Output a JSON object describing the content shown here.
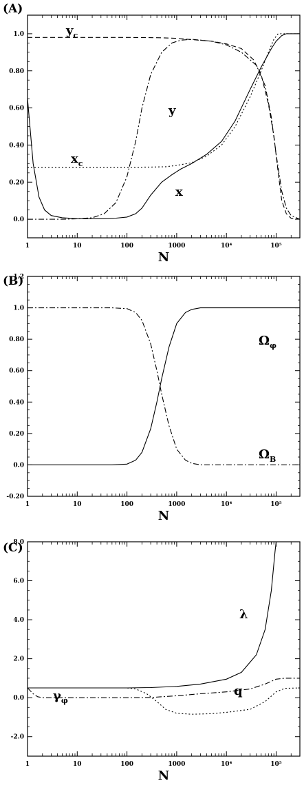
{
  "chart_data": [
    {
      "panel": "(A)",
      "type": "line",
      "xlabel": "N",
      "x_scale": "log",
      "xlim": [
        1,
        300000
      ],
      "ylim": [
        -0.1,
        1.1
      ],
      "x_ticks": [
        1,
        10,
        100,
        1000,
        10000,
        100000
      ],
      "x_tick_labels": [
        "1",
        "10",
        "100",
        "1000",
        "10⁴",
        "10⁵"
      ],
      "y_ticks": [
        0.0,
        0.2,
        0.4,
        0.6,
        0.8,
        1.0
      ],
      "y_tick_labels": [
        "0.0",
        "0.20",
        "0.40",
        "0.60",
        "0.80",
        "1.0"
      ],
      "series": [
        {
          "name": "x",
          "name_main": "x",
          "name_sub": "",
          "style": "solid",
          "points": [
            [
              1,
              0.65
            ],
            [
              1.3,
              0.3
            ],
            [
              1.7,
              0.12
            ],
            [
              2.2,
              0.05
            ],
            [
              3,
              0.02
            ],
            [
              5,
              0.008
            ],
            [
              10,
              0.003
            ],
            [
              30,
              0.003
            ],
            [
              60,
              0.006
            ],
            [
              100,
              0.012
            ],
            [
              150,
              0.03
            ],
            [
              200,
              0.06
            ],
            [
              300,
              0.13
            ],
            [
              500,
              0.2
            ],
            [
              800,
              0.24
            ],
            [
              1200,
              0.27
            ],
            [
              2000,
              0.3
            ],
            [
              4000,
              0.35
            ],
            [
              8000,
              0.42
            ],
            [
              15000,
              0.53
            ],
            [
              30000,
              0.7
            ],
            [
              50000,
              0.82
            ],
            [
              80000,
              0.92
            ],
            [
              100000,
              0.96
            ],
            [
              130000,
              0.99
            ],
            [
              160000,
              1.0
            ],
            [
              300000,
              1.0
            ]
          ]
        },
        {
          "name": "y",
          "name_main": "y",
          "name_sub": "",
          "style": "dashdot",
          "points": [
            [
              1,
              0.0
            ],
            [
              5,
              0.0
            ],
            [
              10,
              0.002
            ],
            [
              20,
              0.008
            ],
            [
              35,
              0.03
            ],
            [
              60,
              0.09
            ],
            [
              100,
              0.23
            ],
            [
              150,
              0.42
            ],
            [
              200,
              0.6
            ],
            [
              300,
              0.78
            ],
            [
              500,
              0.9
            ],
            [
              800,
              0.95
            ],
            [
              1200,
              0.965
            ],
            [
              2000,
              0.97
            ],
            [
              5000,
              0.96
            ],
            [
              10000,
              0.94
            ],
            [
              20000,
              0.9
            ],
            [
              40000,
              0.83
            ],
            [
              60000,
              0.72
            ],
            [
              80000,
              0.55
            ],
            [
              100000,
              0.35
            ],
            [
              130000,
              0.15
            ],
            [
              160000,
              0.06
            ],
            [
              200000,
              0.02
            ],
            [
              300000,
              0.0
            ]
          ]
        },
        {
          "name": "y_c",
          "name_main": "y",
          "name_sub": "c",
          "style": "dashed",
          "points": [
            [
              1,
              0.98
            ],
            [
              100,
              0.98
            ],
            [
              500,
              0.978
            ],
            [
              1000,
              0.975
            ],
            [
              2000,
              0.968
            ],
            [
              5000,
              0.96
            ],
            [
              10000,
              0.945
            ],
            [
              20000,
              0.92
            ],
            [
              35000,
              0.86
            ],
            [
              50000,
              0.78
            ],
            [
              70000,
              0.62
            ],
            [
              90000,
              0.45
            ],
            [
              110000,
              0.25
            ],
            [
              130000,
              0.1
            ],
            [
              160000,
              0.03
            ],
            [
              200000,
              0.005
            ],
            [
              300000,
              0.0
            ]
          ]
        },
        {
          "name": "x_c",
          "name_main": "x",
          "name_sub": "c",
          "style": "dotted",
          "points": [
            [
              1,
              0.28
            ],
            [
              100,
              0.28
            ],
            [
              300,
              0.281
            ],
            [
              600,
              0.283
            ],
            [
              1000,
              0.29
            ],
            [
              2000,
              0.305
            ],
            [
              4000,
              0.34
            ],
            [
              8000,
              0.4
            ],
            [
              15000,
              0.5
            ],
            [
              30000,
              0.66
            ],
            [
              50000,
              0.8
            ],
            [
              70000,
              0.9
            ],
            [
              90000,
              0.97
            ],
            [
              110000,
              1.0
            ],
            [
              300000,
              1.0
            ]
          ]
        }
      ]
    },
    {
      "panel": "(B)",
      "type": "line",
      "xlabel": "N",
      "x_scale": "log",
      "xlim": [
        1,
        300000
      ],
      "ylim": [
        -0.2,
        1.2
      ],
      "x_ticks": [
        1,
        10,
        100,
        1000,
        10000,
        100000
      ],
      "x_tick_labels": [
        "1",
        "10",
        "100",
        "1000",
        "10⁴",
        "10⁵"
      ],
      "y_ticks": [
        -0.2,
        0.0,
        0.2,
        0.4,
        0.6,
        0.8,
        1.0,
        1.2
      ],
      "y_tick_labels": [
        "-0.20",
        "0.0",
        "0.20",
        "0.40",
        "0.60",
        "0.80",
        "1.0",
        "1.2"
      ],
      "series": [
        {
          "name": "Ω_φ",
          "name_main": "Ω",
          "name_sub": "φ",
          "style": "solid",
          "points": [
            [
              1,
              0.0
            ],
            [
              50,
              0.0
            ],
            [
              100,
              0.005
            ],
            [
              150,
              0.03
            ],
            [
              200,
              0.08
            ],
            [
              300,
              0.23
            ],
            [
              400,
              0.4
            ],
            [
              500,
              0.55
            ],
            [
              700,
              0.75
            ],
            [
              1000,
              0.9
            ],
            [
              1500,
              0.97
            ],
            [
              2000,
              0.99
            ],
            [
              3000,
              1.0
            ],
            [
              300000,
              1.0
            ]
          ]
        },
        {
          "name": "Ω_B",
          "name_main": "Ω",
          "name_sub": "B",
          "style": "dashdot",
          "points": [
            [
              1,
              1.0
            ],
            [
              50,
              1.0
            ],
            [
              100,
              0.995
            ],
            [
              150,
              0.97
            ],
            [
              200,
              0.92
            ],
            [
              300,
              0.77
            ],
            [
              400,
              0.6
            ],
            [
              500,
              0.45
            ],
            [
              700,
              0.25
            ],
            [
              1000,
              0.1
            ],
            [
              1500,
              0.03
            ],
            [
              2000,
              0.01
            ],
            [
              3000,
              0.0
            ],
            [
              300000,
              0.0
            ]
          ]
        }
      ]
    },
    {
      "panel": "(C)",
      "type": "line",
      "xlabel": "N",
      "x_scale": "log",
      "xlim": [
        1,
        300000
      ],
      "ylim": [
        -3.0,
        8.0
      ],
      "x_ticks": [
        1,
        10,
        100,
        1000,
        10000,
        100000
      ],
      "x_tick_labels": [
        "1",
        "10",
        "100",
        "1000",
        "10⁴",
        "10⁵"
      ],
      "y_ticks": [
        -2.0,
        0.0,
        2.0,
        4.0,
        6.0,
        8.0
      ],
      "y_tick_labels": [
        "-2.0",
        "0.0",
        "2.0",
        "4.0",
        "6.0",
        "8.0"
      ],
      "series": [
        {
          "name": "λ",
          "name_main": "λ",
          "name_sub": "",
          "style": "solid",
          "points": [
            [
              1,
              0.5
            ],
            [
              100,
              0.5
            ],
            [
              300,
              0.52
            ],
            [
              1000,
              0.58
            ],
            [
              3000,
              0.7
            ],
            [
              10000,
              0.95
            ],
            [
              20000,
              1.3
            ],
            [
              40000,
              2.2
            ],
            [
              60000,
              3.5
            ],
            [
              80000,
              5.5
            ],
            [
              95000,
              7.5
            ],
            [
              100000,
              8.0
            ]
          ]
        },
        {
          "name": "q",
          "name_main": "q",
          "name_sub": "",
          "style": "dotted",
          "points": [
            [
              1,
              0.5
            ],
            [
              100,
              0.5
            ],
            [
              150,
              0.45
            ],
            [
              250,
              0.2
            ],
            [
              400,
              -0.2
            ],
            [
              600,
              -0.6
            ],
            [
              1000,
              -0.8
            ],
            [
              2000,
              -0.85
            ],
            [
              5000,
              -0.82
            ],
            [
              10000,
              -0.75
            ],
            [
              30000,
              -0.6
            ],
            [
              60000,
              -0.2
            ],
            [
              100000,
              0.3
            ],
            [
              150000,
              0.48
            ],
            [
              300000,
              0.5
            ]
          ]
        },
        {
          "name": "γ_φ",
          "name_main": "γ",
          "name_sub": "φ",
          "style": "dashdot",
          "points": [
            [
              1,
              0.5
            ],
            [
              1.3,
              0.2
            ],
            [
              1.6,
              0.05
            ],
            [
              2,
              0.0
            ],
            [
              10,
              0.0
            ],
            [
              100,
              0.0
            ],
            [
              300,
              0.01
            ],
            [
              1000,
              0.1
            ],
            [
              3000,
              0.2
            ],
            [
              10000,
              0.3
            ],
            [
              30000,
              0.45
            ],
            [
              60000,
              0.7
            ],
            [
              100000,
              0.95
            ],
            [
              150000,
              1.0
            ],
            [
              300000,
              1.0
            ]
          ]
        }
      ]
    }
  ]
}
